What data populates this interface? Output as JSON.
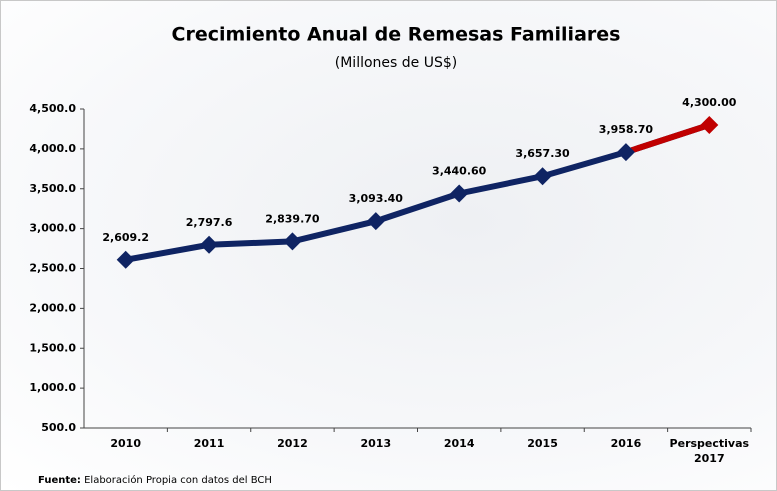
{
  "chart_data": {
    "type": "line",
    "title": "Crecimiento Anual de Remesas Familiares",
    "subtitle": "(Millones de US$)",
    "categories": [
      "2010",
      "2011",
      "2012",
      "2013",
      "2014",
      "2015",
      "2016",
      "Perspectivas 2017"
    ],
    "values": [
      2609.2,
      2797.6,
      2839.7,
      3093.4,
      3440.6,
      3657.3,
      3958.7,
      4300
    ],
    "value_labels": [
      "2,609.2",
      "2,797.6",
      "2,839.70",
      "3,093.40",
      "3,440.60",
      "3,657.30",
      "3,958.70",
      "4,300.00"
    ],
    "color": "#0f2463",
    "point_colors": [
      "#0f2463",
      "#0f2463",
      "#0f2463",
      "#0f2463",
      "#0f2463",
      "#0f2463",
      "#0f2463",
      "#c00000"
    ],
    "ylim": [
      500,
      4500
    ],
    "yticks": [
      {
        "value": 500,
        "label": "500.0"
      },
      {
        "value": 1000,
        "label": "1,000.0"
      },
      {
        "value": 1500,
        "label": "1,500.0"
      },
      {
        "value": 2000,
        "label": "2,000.0"
      },
      {
        "value": 2500,
        "label": "2,500.0"
      },
      {
        "value": 3000,
        "label": "3,000.0"
      },
      {
        "value": 3500,
        "label": "3,500.0"
      },
      {
        "value": 4000,
        "label": "4,000.0"
      },
      {
        "value": 4500,
        "label": "4,500.0"
      }
    ],
    "grid": false,
    "source_label": "Fuente:",
    "source": "Elaboración Propia con datos del BCH"
  }
}
